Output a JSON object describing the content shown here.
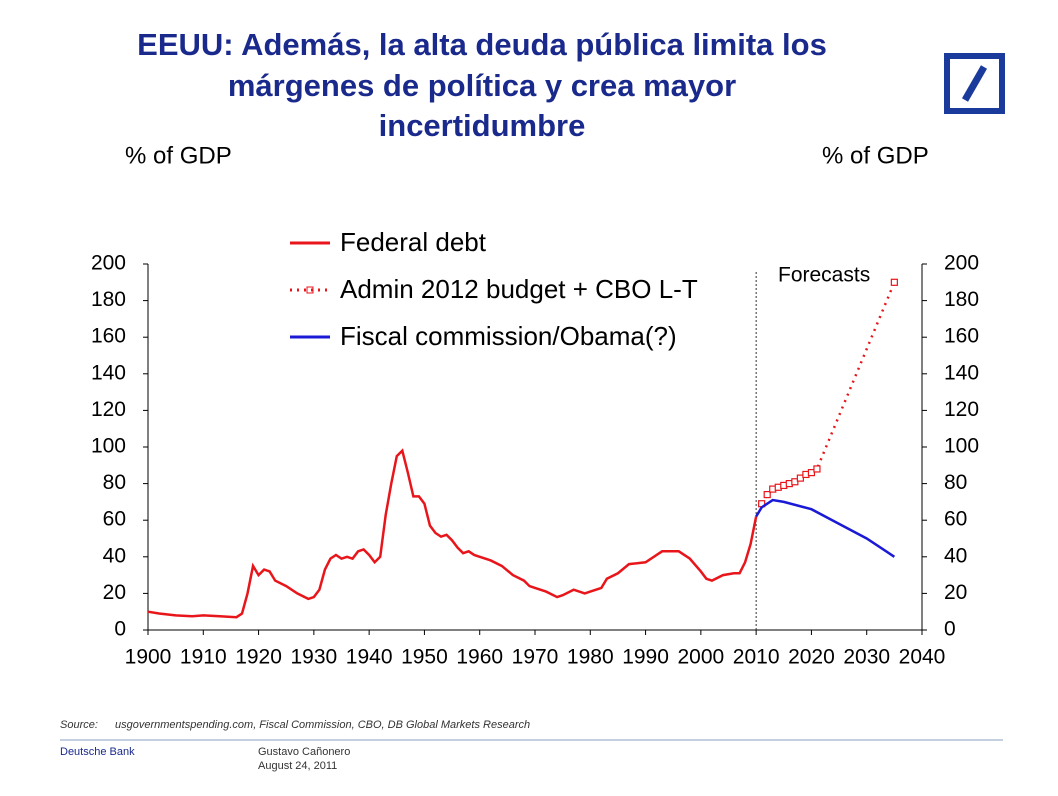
{
  "slide": {
    "title_lines": [
      "EEUU: Además, la alta deuda pública limita los",
      "márgenes de política y crea mayor",
      "incertidumbre"
    ],
    "source_label": "Source:",
    "source_text": "usgovernmentspending.com, Fiscal Commission, CBO, DB Global Markets Research",
    "company": "Deutsche Bank",
    "author": "Gustavo Cañonero",
    "date": "August 24, 2011"
  },
  "chart_data": {
    "type": "line",
    "ylabel": "% of GDP",
    "y2label": "% of GDP",
    "annotation": "Forecasts",
    "forecast_start": 2010,
    "xlim": [
      1900,
      2040
    ],
    "xticks": [
      1900,
      1910,
      1920,
      1930,
      1940,
      1950,
      1960,
      1970,
      1980,
      1990,
      2000,
      2010,
      2020,
      2030,
      2040
    ],
    "ylim": [
      0,
      200
    ],
    "yticks": [
      0,
      20,
      40,
      60,
      80,
      100,
      120,
      140,
      160,
      180,
      200
    ],
    "y2lim": [
      0,
      200
    ],
    "y2ticks": [
      0,
      20,
      40,
      60,
      80,
      100,
      120,
      140,
      160,
      180,
      200
    ],
    "series": [
      {
        "name": "Federal debt",
        "color": "#e8161b",
        "style": "solid",
        "x": [
          1900,
          1902,
          1905,
          1908,
          1910,
          1913,
          1916,
          1917,
          1918,
          1919,
          1920,
          1921,
          1922,
          1923,
          1925,
          1927,
          1929,
          1930,
          1931,
          1932,
          1933,
          1934,
          1935,
          1936,
          1937,
          1938,
          1939,
          1940,
          1941,
          1942,
          1943,
          1944,
          1945,
          1946,
          1947,
          1948,
          1949,
          1950,
          1951,
          1952,
          1953,
          1954,
          1955,
          1956,
          1957,
          1958,
          1959,
          1960,
          1962,
          1964,
          1966,
          1968,
          1969,
          1970,
          1972,
          1974,
          1975,
          1977,
          1979,
          1980,
          1982,
          1983,
          1985,
          1987,
          1990,
          1992,
          1993,
          1994,
          1996,
          1998,
          2000,
          2001,
          2002,
          2004,
          2006,
          2007,
          2008,
          2009,
          2010
        ],
        "values": [
          10,
          9,
          8,
          7.5,
          8,
          7.5,
          7,
          9,
          20,
          35,
          30,
          33,
          32,
          27,
          24,
          20,
          17,
          18,
          22,
          33,
          39,
          41,
          39,
          40,
          39,
          43,
          44,
          41,
          37,
          40,
          63,
          80,
          95,
          98,
          86,
          73,
          73,
          69,
          57,
          53,
          51,
          52,
          49,
          45,
          42,
          43,
          41,
          40,
          38,
          35,
          30,
          27,
          24,
          23,
          21,
          18,
          19,
          22,
          20,
          21,
          23,
          28,
          31,
          36,
          37,
          41,
          43,
          43,
          43,
          39,
          32,
          28,
          27,
          30,
          31,
          31,
          37,
          47,
          62
        ]
      },
      {
        "name": "Admin 2012 budget + CBO L-T",
        "color": "#e8161b",
        "style": "dotted",
        "x": [
          2011,
          2012,
          2013,
          2014,
          2015,
          2016,
          2017,
          2018,
          2019,
          2020,
          2021,
          2035
        ],
        "values": [
          69,
          74,
          77,
          78,
          79,
          80,
          81,
          83,
          85,
          86,
          88,
          190
        ]
      },
      {
        "name": "Fiscal commission/Obama(?)",
        "color": "#1a1ad6",
        "style": "solid",
        "x": [
          2010,
          2011,
          2013,
          2015,
          2020,
          2025,
          2030,
          2035
        ],
        "values": [
          62,
          67,
          71,
          70,
          66,
          58,
          50,
          40
        ]
      }
    ]
  }
}
